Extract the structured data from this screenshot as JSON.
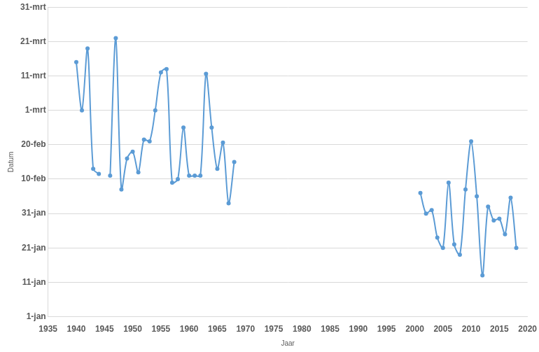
{
  "chart_data": {
    "type": "line",
    "x_label": "Jaar",
    "y_label": "Datum",
    "x": [
      1940,
      1941,
      1942,
      1943,
      1944,
      1945,
      1946,
      1947,
      1948,
      1949,
      1950,
      1951,
      1952,
      1953,
      1954,
      1955,
      1956,
      1957,
      1958,
      1959,
      1960,
      1961,
      1962,
      1963,
      1964,
      1965,
      1966,
      1967,
      1968,
      1969,
      2001,
      2002,
      2003,
      2004,
      2005,
      2006,
      2007,
      2008,
      2009,
      2010,
      2011,
      2012,
      2013,
      2014,
      2015,
      2016,
      2017,
      2018
    ],
    "values": [
      75,
      61,
      79,
      44,
      42.5,
      null,
      42,
      82,
      38,
      47,
      49,
      43,
      52.5,
      52,
      61,
      72,
      73,
      40,
      41,
      56,
      42,
      42,
      42,
      71.6,
      56,
      44,
      51.6,
      34,
      46,
      null,
      37,
      31,
      32,
      24,
      21,
      40,
      22,
      19,
      38,
      52,
      36,
      13,
      33,
      29,
      29.5,
      25,
      35.6,
      21
    ],
    "color": "#5b9bd5",
    "marker": "circle",
    "line_style": "solid",
    "grid": true,
    "xlim": [
      1935,
      2020
    ],
    "xticks": [
      1935,
      1940,
      1945,
      1950,
      1955,
      1960,
      1965,
      1970,
      1975,
      1980,
      1985,
      1990,
      1995,
      2000,
      2005,
      2010,
      2015,
      2020
    ],
    "ylim": [
      1,
      91
    ],
    "yticks": [
      {
        "value": 1,
        "label": "1-jan"
      },
      {
        "value": 11,
        "label": "11-jan"
      },
      {
        "value": 21,
        "label": "21-jan"
      },
      {
        "value": 31,
        "label": "31-jan"
      },
      {
        "value": 41,
        "label": "10-feb"
      },
      {
        "value": 51,
        "label": "20-feb"
      },
      {
        "value": 61,
        "label": "1-mrt"
      },
      {
        "value": 71,
        "label": "11-mrt"
      },
      {
        "value": 81,
        "label": "21-mrt"
      },
      {
        "value": 91,
        "label": "31-mrt"
      }
    ]
  }
}
